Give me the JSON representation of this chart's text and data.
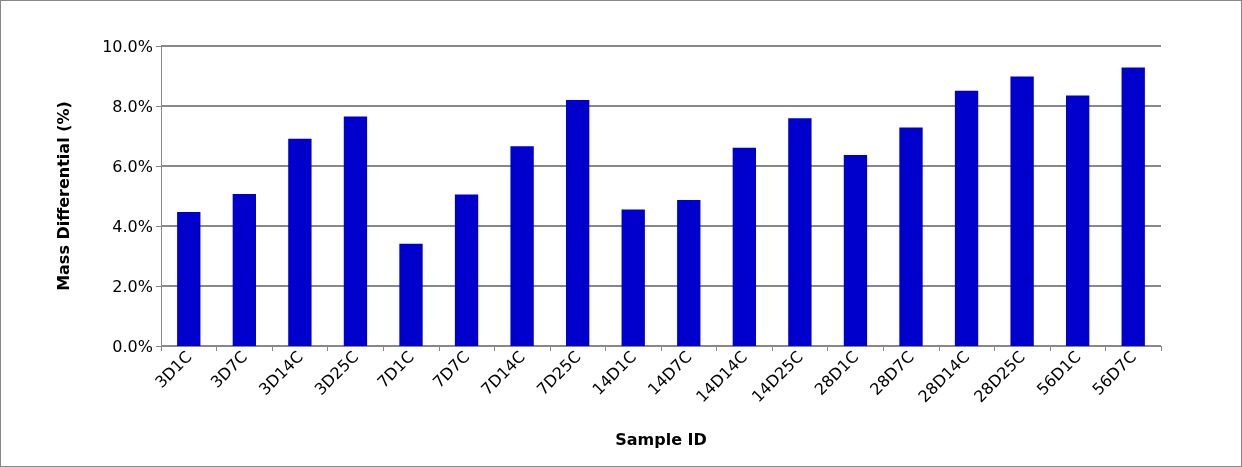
{
  "chart_data": {
    "type": "bar",
    "xlabel": "Sample ID",
    "ylabel": "Mass Differential (%)",
    "categories": [
      "3D1C",
      "3D7C",
      "3D14C",
      "3D25C",
      "7D1C",
      "7D7C",
      "7D14C",
      "7D25C",
      "14D1C",
      "14D7C",
      "14D14C",
      "14D25C",
      "28D1C",
      "28D7C",
      "28D14C",
      "28D25C",
      "56D1C",
      "56D7C"
    ],
    "values": [
      4.47,
      5.07,
      6.91,
      7.65,
      3.41,
      5.05,
      6.66,
      8.2,
      4.55,
      4.87,
      6.61,
      7.59,
      6.37,
      7.28,
      8.51,
      8.98,
      8.35,
      9.28
    ],
    "color": "#0000cc",
    "ylim": [
      0,
      10
    ],
    "yticks": [
      {
        "value": 0,
        "label": "0.0%"
      },
      {
        "value": 2,
        "label": "2.0%"
      },
      {
        "value": 4,
        "label": "4.0%"
      },
      {
        "value": 6,
        "label": "6.0%"
      },
      {
        "value": 8,
        "label": "8.0%"
      },
      {
        "value": 10,
        "label": "10.0%"
      }
    ],
    "grid": "y"
  }
}
